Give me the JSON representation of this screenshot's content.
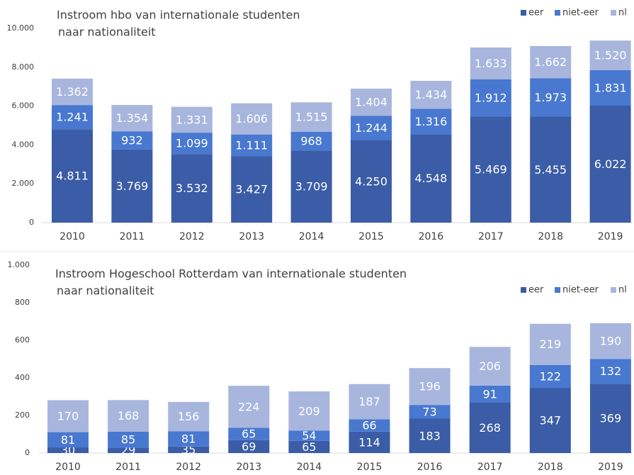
{
  "chart_data": [
    {
      "type": "stacked-bar",
      "title": [
        "Instroom hbo van internationale studenten",
        "naar nationaliteit"
      ],
      "categories": [
        "2010",
        "2011",
        "2012",
        "2013",
        "2014",
        "2015",
        "2016",
        "2017",
        "2018",
        "2019"
      ],
      "series": [
        {
          "name": "eer",
          "color": "#3b5ca6",
          "values": [
            4811,
            3769,
            3532,
            3427,
            3709,
            4250,
            4548,
            5469,
            5455,
            6022
          ],
          "value_labels": [
            "4.811",
            "3.769",
            "3.532",
            "3.427",
            "3.709",
            "4.250",
            "4.548",
            "5.469",
            "5.455",
            "6.022"
          ]
        },
        {
          "name": "niet-eer",
          "color": "#4878d0",
          "values": [
            1241,
            932,
            1099,
            1111,
            968,
            1244,
            1316,
            1912,
            1973,
            1831
          ],
          "value_labels": [
            "1.241",
            "932",
            "1.099",
            "1.111",
            "968",
            "1.244",
            "1.316",
            "1.912",
            "1.973",
            "1.831"
          ]
        },
        {
          "name": "nl",
          "color": "#a8b6de",
          "values": [
            1362,
            1354,
            1331,
            1606,
            1515,
            1404,
            1434,
            1633,
            1662,
            1520
          ],
          "value_labels": [
            "1.362",
            "1.354",
            "1.331",
            "1.606",
            "1.515",
            "1.404",
            "1.434",
            "1.633",
            "1.662",
            "1.520"
          ]
        }
      ],
      "ylim": [
        0,
        10000
      ],
      "yticks": [
        0,
        {
          "value": 2000,
          "label": "2.000"
        },
        {
          "value": 4000,
          "label": "4.000"
        },
        {
          "value": 6000,
          "label": "6.000"
        },
        {
          "value": 8000,
          "label": "8.000"
        },
        {
          "value": 10000,
          "label": "10.000"
        }
      ],
      "legend": "top-right"
    },
    {
      "type": "stacked-bar",
      "title": [
        "Instroom Hogeschool Rotterdam van internationale studenten",
        "naar nationaliteit"
      ],
      "categories": [
        "2010",
        "2011",
        "2012",
        "2013",
        "2014",
        "2015",
        "2016",
        "2017",
        "2018",
        "2019"
      ],
      "series": [
        {
          "name": "eer",
          "color": "#3b5ca6",
          "values": [
            30,
            29,
            35,
            69,
            65,
            114,
            183,
            268,
            347,
            369
          ]
        },
        {
          "name": "niet-eer",
          "color": "#4878d0",
          "values": [
            81,
            85,
            81,
            65,
            54,
            66,
            73,
            91,
            122,
            132
          ]
        },
        {
          "name": "nl",
          "color": "#a8b6de",
          "values": [
            170,
            168,
            156,
            224,
            209,
            187,
            196,
            206,
            219,
            190
          ]
        }
      ],
      "ylim": [
        0,
        1000
      ],
      "yticks": [
        0,
        200,
        400,
        600,
        800,
        {
          "value": 1000,
          "label": "1.000"
        }
      ],
      "legend": "top-right"
    }
  ]
}
